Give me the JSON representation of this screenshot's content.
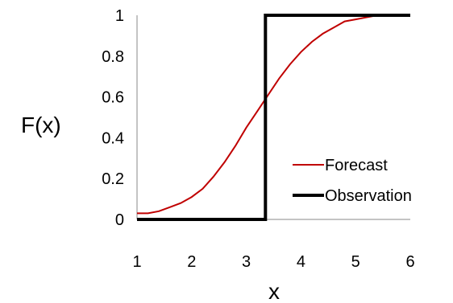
{
  "chart_data": {
    "type": "line",
    "xlabel": "x",
    "ylabel": "F(x)",
    "xlim": [
      1,
      6
    ],
    "ylim": [
      0,
      1
    ],
    "x_ticks": [
      "1",
      "2",
      "3",
      "4",
      "5",
      "6"
    ],
    "y_ticks": [
      "0",
      "0.2",
      "0.4",
      "0.6",
      "0.8",
      "1"
    ],
    "grid": false,
    "legend_position": "bottom-right",
    "series": [
      {
        "name": "Forecast",
        "color": "#c00000",
        "x": [
          1.0,
          1.2,
          1.4,
          1.6,
          1.8,
          2.0,
          2.2,
          2.4,
          2.6,
          2.8,
          3.0,
          3.2,
          3.4,
          3.6,
          3.8,
          4.0,
          4.2,
          4.4,
          4.6,
          4.8,
          5.0,
          5.2,
          5.4,
          5.6,
          5.8,
          6.0
        ],
        "y": [
          0.03,
          0.03,
          0.04,
          0.06,
          0.08,
          0.11,
          0.15,
          0.21,
          0.28,
          0.36,
          0.45,
          0.53,
          0.61,
          0.69,
          0.76,
          0.82,
          0.87,
          0.91,
          0.94,
          0.97,
          0.98,
          0.99,
          1.0,
          1.0,
          1.0,
          1.0
        ]
      },
      {
        "name": "Observation",
        "color": "#000000",
        "x": [
          1.0,
          3.35,
          3.35,
          6.0
        ],
        "y": [
          0,
          0,
          1,
          1
        ]
      }
    ]
  }
}
